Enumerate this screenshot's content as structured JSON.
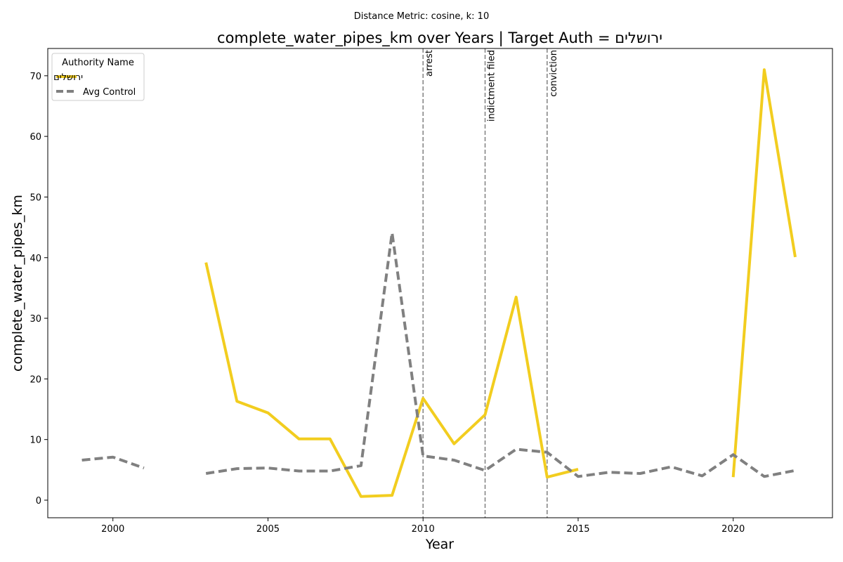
{
  "chart_data": {
    "type": "line",
    "suptitle": "Distance Metric: cosine, k: 10",
    "title": "complete_water_pipes_km over Years | Target Auth = ירושלים",
    "xlabel": "Year",
    "ylabel": "complete_water_pipes_km",
    "xlim": [
      1997.9,
      2023.2
    ],
    "ylim": [
      -2.9,
      74.5
    ],
    "xticks": [
      2000,
      2005,
      2010,
      2015,
      2020
    ],
    "yticks": [
      0,
      10,
      20,
      30,
      40,
      50,
      60,
      70
    ],
    "grid": false,
    "legend": {
      "title": "Authority Name",
      "placement": "top-left"
    },
    "series": [
      {
        "name": "ירושלים",
        "color": "#f2cd1f",
        "style": "solid",
        "points": [
          [
            2003,
            39.2
          ],
          [
            2004,
            16.3
          ],
          [
            2005,
            14.4
          ],
          [
            2006,
            10.1
          ],
          [
            2007,
            10.1
          ],
          [
            2008,
            0.6
          ],
          [
            2009,
            0.8
          ],
          [
            2010,
            16.8
          ],
          [
            2011,
            9.3
          ],
          [
            2012,
            14.1
          ],
          [
            2013,
            33.5
          ],
          [
            2014,
            3.8
          ],
          [
            2015,
            5.1
          ],
          null,
          [
            2020,
            3.8
          ],
          [
            2021,
            71.0
          ],
          [
            2022,
            40.1
          ]
        ]
      },
      {
        "name": "Avg Control",
        "color": "#808080",
        "style": "dashed",
        "points": [
          [
            1999,
            6.6
          ],
          [
            2000,
            7.1
          ],
          [
            2001,
            5.3
          ],
          null,
          [
            2003,
            4.4
          ],
          [
            2004,
            5.2
          ],
          [
            2005,
            5.3
          ],
          [
            2006,
            4.8
          ],
          [
            2007,
            4.8
          ],
          [
            2008,
            5.7
          ],
          [
            2009,
            44.1
          ],
          [
            2010,
            7.3
          ],
          [
            2011,
            6.6
          ],
          [
            2012,
            4.9
          ],
          [
            2013,
            8.4
          ],
          [
            2014,
            7.9
          ],
          [
            2015,
            3.9
          ],
          [
            2016,
            4.6
          ],
          [
            2017,
            4.4
          ],
          [
            2018,
            5.5
          ],
          [
            2019,
            4.0
          ],
          [
            2020,
            7.5
          ],
          [
            2021,
            3.9
          ],
          [
            2022,
            4.9
          ]
        ]
      }
    ],
    "events": [
      {
        "x": 2010,
        "label": "arrest"
      },
      {
        "x": 2012,
        "label": "indictment filed"
      },
      {
        "x": 2014,
        "label": "conviction"
      }
    ]
  }
}
